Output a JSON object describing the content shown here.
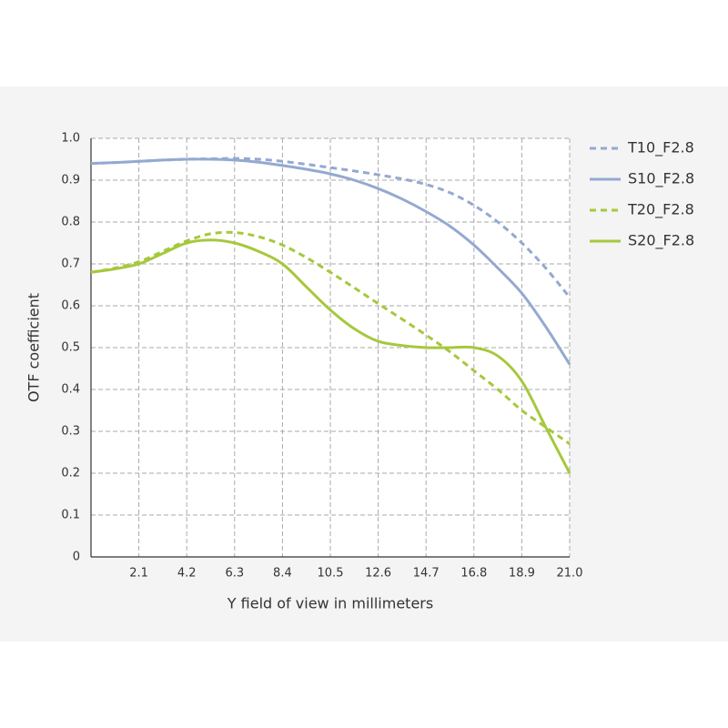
{
  "chart_data": {
    "type": "line",
    "x_label": "Y field of view in millimeters",
    "y_label": "OTF coefficient",
    "x": [
      0,
      1.05,
      2.1,
      3.15,
      4.2,
      5.25,
      6.3,
      7.35,
      8.4,
      9.45,
      10.5,
      11.55,
      12.6,
      13.65,
      14.7,
      15.75,
      16.8,
      17.85,
      18.9,
      19.95,
      21
    ],
    "series": [
      {
        "name": "T10_F2.8",
        "color": "#94a9d1",
        "dashed": true,
        "values": [
          0.94,
          0.942,
          0.945,
          0.948,
          0.95,
          0.951,
          0.952,
          0.95,
          0.945,
          0.938,
          0.93,
          0.922,
          0.913,
          0.903,
          0.89,
          0.87,
          0.84,
          0.8,
          0.75,
          0.69,
          0.62
        ]
      },
      {
        "name": "S10_F2.8",
        "color": "#94a9d1",
        "dashed": false,
        "values": [
          0.94,
          0.942,
          0.945,
          0.948,
          0.95,
          0.95,
          0.948,
          0.943,
          0.935,
          0.926,
          0.915,
          0.9,
          0.88,
          0.855,
          0.825,
          0.79,
          0.745,
          0.69,
          0.63,
          0.55,
          0.46
        ]
      },
      {
        "name": "T20_F2.8",
        "color": "#a6c83c",
        "dashed": true,
        "values": [
          0.68,
          0.69,
          0.705,
          0.73,
          0.755,
          0.772,
          0.775,
          0.765,
          0.745,
          0.715,
          0.68,
          0.643,
          0.605,
          0.568,
          0.53,
          0.49,
          0.445,
          0.4,
          0.35,
          0.31,
          0.27
        ]
      },
      {
        "name": "S20_F2.8",
        "color": "#a6c83c",
        "dashed": false,
        "values": [
          0.68,
          0.688,
          0.7,
          0.725,
          0.75,
          0.757,
          0.75,
          0.73,
          0.7,
          0.645,
          0.59,
          0.545,
          0.515,
          0.505,
          0.5,
          0.5,
          0.5,
          0.48,
          0.42,
          0.31,
          0.2
        ]
      }
    ],
    "xlim": [
      0,
      21
    ],
    "xticks": [
      2.1,
      4.2,
      6.3,
      8.4,
      10.5,
      12.6,
      14.7,
      16.8,
      18.9,
      {
        "value": 21,
        "label": "21.0"
      }
    ],
    "ylim": [
      0,
      1
    ],
    "yticks": [
      0,
      0.1,
      0.2,
      0.3,
      0.4,
      0.5,
      0.6,
      0.7,
      0.8,
      0.9,
      {
        "value": 1,
        "label": "1.0"
      }
    ],
    "grid": true,
    "legend": "right"
  }
}
